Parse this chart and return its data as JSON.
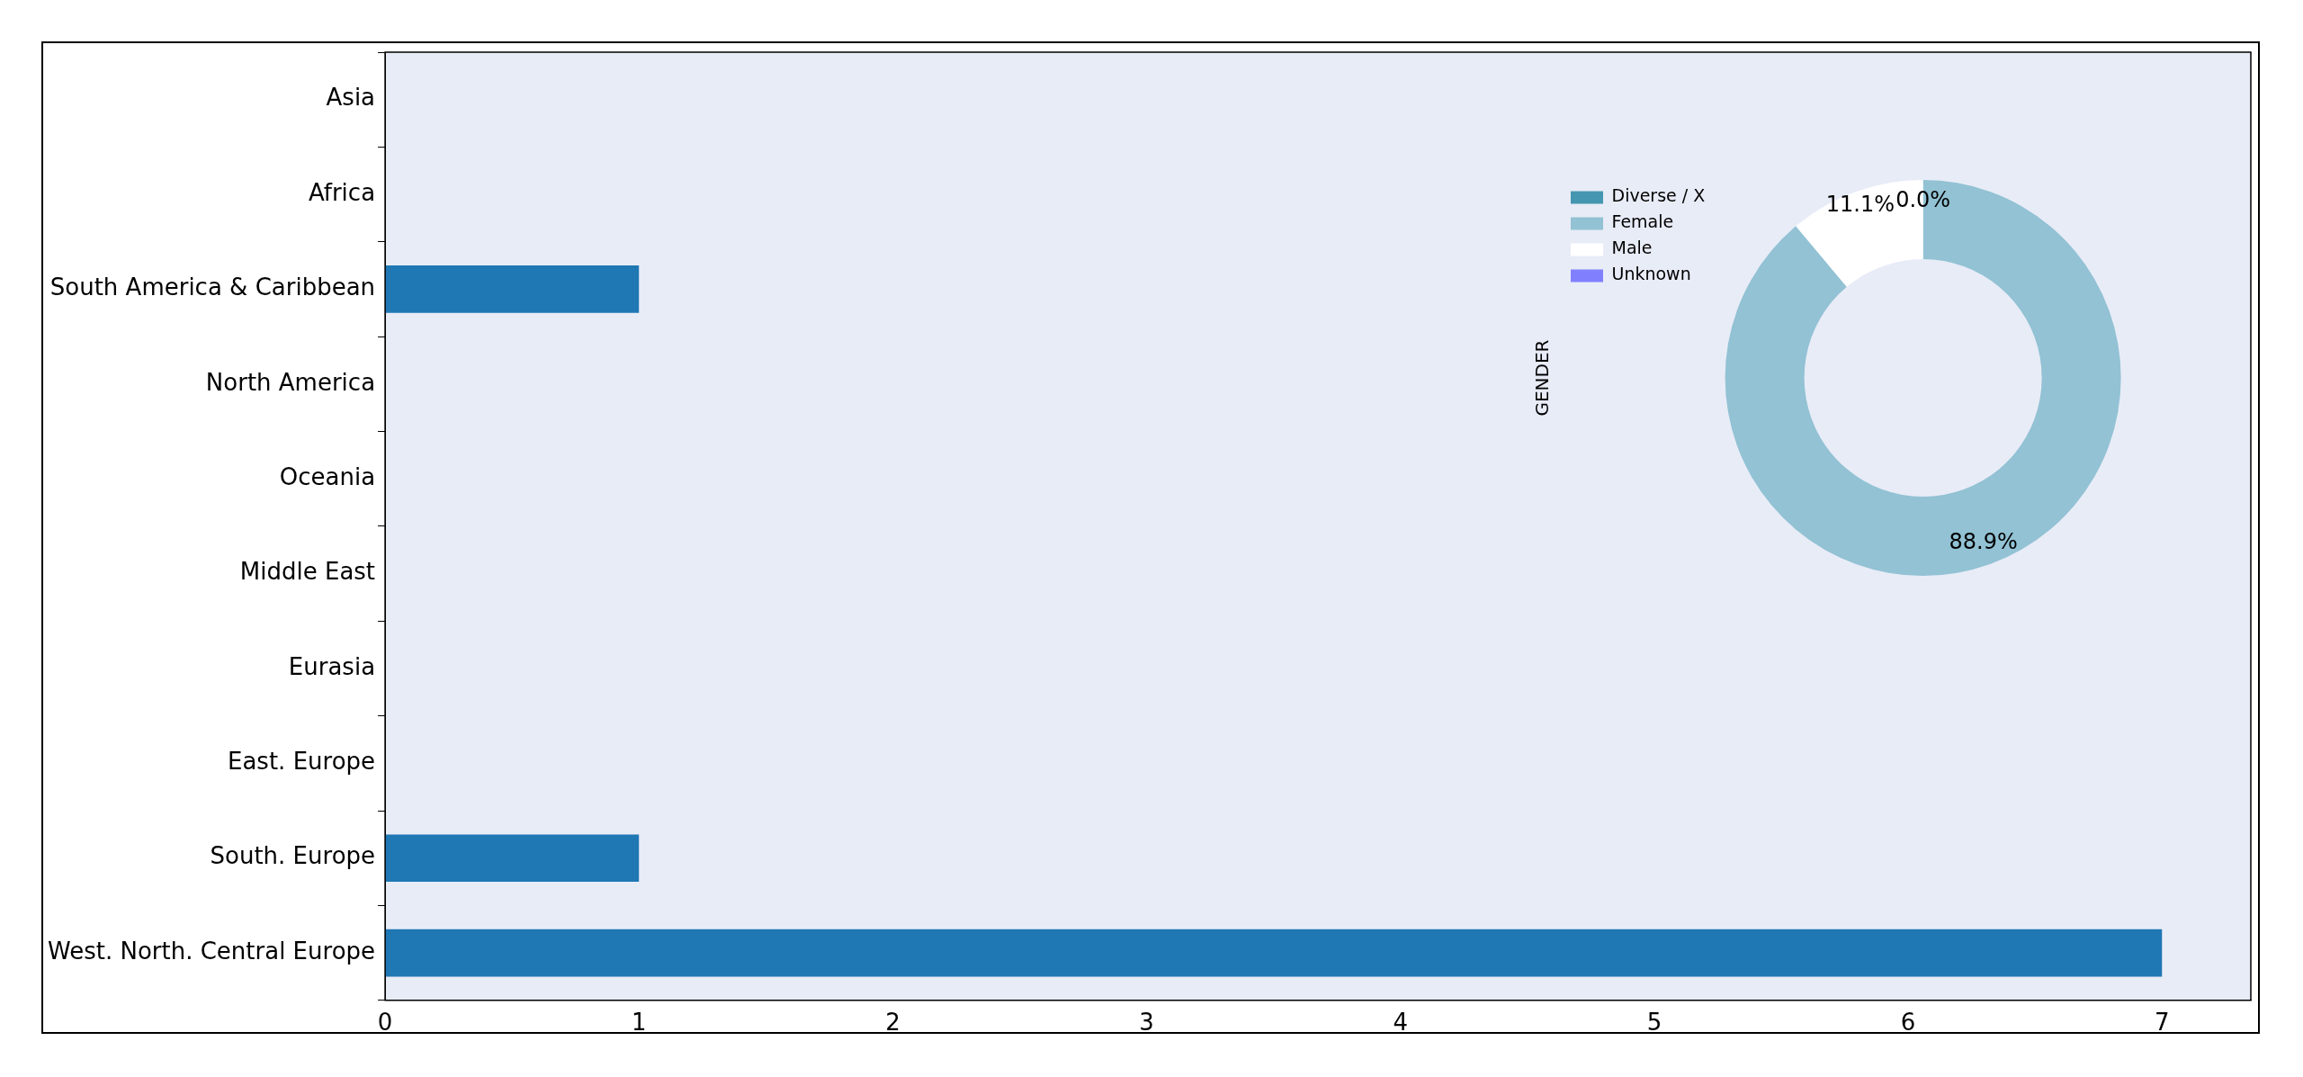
{
  "chart_data": [
    {
      "type": "bar",
      "orientation": "horizontal",
      "categories": [
        "Asia",
        "Africa",
        "South America & Caribbean",
        "North America",
        "Oceania",
        "Middle East",
        "Eurasia",
        "East. Europe",
        "South. Europe",
        "West. North. Central Europe"
      ],
      "values": [
        0,
        0,
        1,
        0,
        0,
        0,
        0,
        0,
        1,
        7
      ],
      "color": "#1f77b4",
      "xlim": [
        0,
        7.35
      ],
      "xticks": [
        0,
        1,
        2,
        3,
        4,
        5,
        6,
        7
      ],
      "grid": false
    },
    {
      "type": "donut",
      "ylabel": "GENDER",
      "categories": [
        "Diverse / X",
        "Female",
        "Male",
        "Unknown"
      ],
      "values": [
        0,
        88.9,
        11.1,
        0
      ],
      "colors": [
        "#4596b0",
        "#92c2d4",
        "#ffffff",
        "#8080ff"
      ],
      "value_labels": [
        "0.0%",
        "88.9%",
        "11.1%",
        null
      ],
      "legend": "top left"
    }
  ]
}
